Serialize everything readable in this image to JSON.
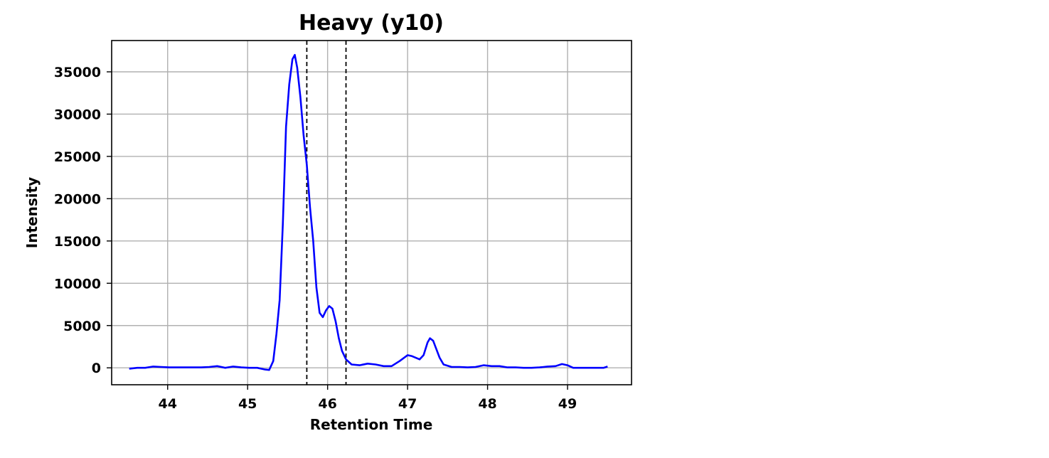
{
  "chart_data": {
    "type": "line",
    "title": "Heavy (y10)",
    "xlabel": "Retention Time",
    "ylabel": "Intensity",
    "xlim": [
      43.3,
      49.8
    ],
    "ylim": [
      -2000,
      38700
    ],
    "xticks": [
      44,
      45,
      46,
      47,
      48,
      49
    ],
    "yticks": [
      0,
      5000,
      10000,
      15000,
      20000,
      25000,
      30000,
      35000
    ],
    "grid": true,
    "line_color": "#0000ff",
    "vlines": [
      45.74,
      46.23
    ],
    "vline_color": "#000000",
    "vline_style": "dashed",
    "series": [
      {
        "x": [
          43.52,
          43.62,
          43.72,
          43.82,
          43.92,
          44.02,
          44.12,
          44.22,
          44.32,
          44.42,
          44.52,
          44.62,
          44.72,
          44.82,
          44.92,
          45.02,
          45.12,
          45.22,
          45.27,
          45.32,
          45.36,
          45.4,
          45.44,
          45.48,
          45.52,
          45.56,
          45.59,
          45.62,
          45.66,
          45.7,
          45.74,
          45.78,
          45.82,
          45.86,
          45.9,
          45.94,
          45.98,
          46.02,
          46.06,
          46.1,
          46.14,
          46.18,
          46.23,
          46.3,
          46.4,
          46.5,
          46.6,
          46.7,
          46.8,
          46.9,
          47.0,
          47.05,
          47.1,
          47.15,
          47.2,
          47.25,
          47.28,
          47.32,
          47.36,
          47.4,
          47.45,
          47.55,
          47.65,
          47.75,
          47.85,
          47.95,
          48.05,
          48.15,
          48.25,
          48.35,
          48.45,
          48.55,
          48.65,
          48.75,
          48.85,
          48.93,
          49.0,
          49.07,
          49.15,
          49.25,
          49.35,
          49.45,
          49.5
        ],
        "values": [
          -100,
          0,
          0,
          150,
          100,
          50,
          50,
          50,
          50,
          50,
          100,
          200,
          0,
          150,
          50,
          0,
          0,
          -200,
          -250,
          800,
          4000,
          8000,
          17000,
          28500,
          33500,
          36500,
          37000,
          35500,
          32000,
          27500,
          24000,
          19000,
          15000,
          9500,
          6500,
          6000,
          6800,
          7300,
          7000,
          5500,
          3500,
          2000,
          1000,
          400,
          300,
          500,
          400,
          200,
          200,
          800,
          1500,
          1400,
          1200,
          1000,
          1500,
          3000,
          3500,
          3200,
          2200,
          1200,
          400,
          100,
          100,
          50,
          100,
          300,
          200,
          200,
          50,
          50,
          0,
          0,
          50,
          150,
          200,
          450,
          300,
          0,
          0,
          0,
          0,
          0,
          150
        ]
      }
    ]
  }
}
